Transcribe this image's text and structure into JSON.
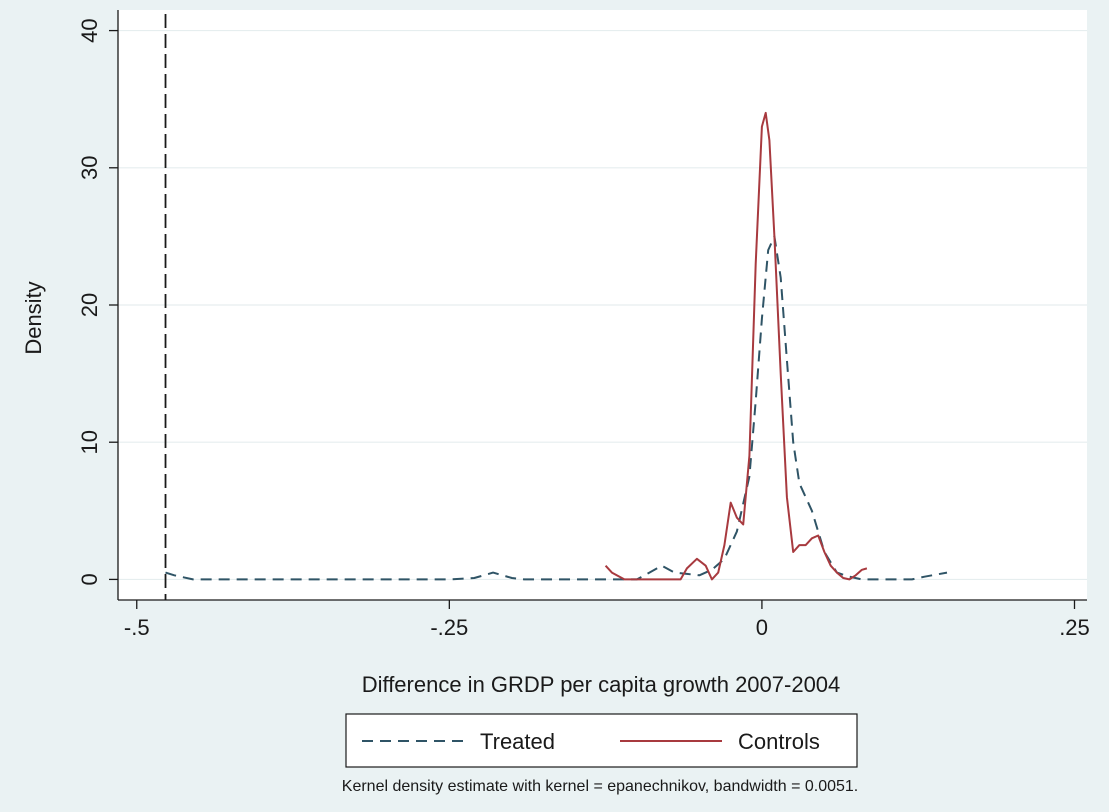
{
  "chart_data": {
    "type": "line",
    "title": "",
    "xlabel": "Difference in GRDP per capita growth 2007-2004",
    "ylabel": "Density",
    "xlim": [
      -0.515,
      0.26
    ],
    "ylim": [
      -1.5,
      41.5
    ],
    "x_ticks": [
      -0.5,
      -0.25,
      0,
      0.25
    ],
    "x_tick_labels": [
      "-.5",
      "-.25",
      "0",
      ".25"
    ],
    "y_ticks": [
      0,
      10,
      20,
      30,
      40
    ],
    "y_tick_labels": [
      "0",
      "10",
      "20",
      "30",
      "40"
    ],
    "grid": "horizontal",
    "legend_position": "bottom",
    "reference_line": {
      "x": -0.477,
      "style": "dashed"
    },
    "note": "Kernel density estimate with kernel = epanechnikov, bandwidth = 0.0051.",
    "series": [
      {
        "name": "Treated",
        "color": "#2f5466",
        "style": "dashed",
        "x": [
          -0.477,
          -0.47,
          -0.455,
          -0.44,
          -0.4,
          -0.3,
          -0.25,
          -0.23,
          -0.215,
          -0.2,
          -0.19,
          -0.15,
          -0.1,
          -0.09,
          -0.08,
          -0.07,
          -0.06,
          -0.05,
          -0.04,
          -0.03,
          -0.02,
          -0.01,
          -0.005,
          0,
          0.005,
          0.01,
          0.015,
          0.02,
          0.025,
          0.03,
          0.04,
          0.05,
          0.06,
          0.07,
          0.08,
          0.1,
          0.12,
          0.13,
          0.148
        ],
        "y": [
          0.5,
          0.3,
          0,
          0,
          0,
          0,
          0,
          0.1,
          0.5,
          0.1,
          0,
          0,
          0,
          0.5,
          1,
          0.5,
          0.4,
          0.3,
          0.7,
          1.5,
          3.5,
          7.5,
          13,
          19,
          24,
          25,
          22,
          16,
          10,
          7,
          5,
          2,
          0.5,
          0.2,
          0,
          0,
          0,
          0.2,
          0.5
        ]
      },
      {
        "name": "Controls",
        "color": "#a83a3f",
        "style": "solid",
        "x": [
          -0.125,
          -0.12,
          -0.11,
          -0.1,
          -0.08,
          -0.065,
          -0.06,
          -0.052,
          -0.045,
          -0.04,
          -0.035,
          -0.03,
          -0.025,
          -0.02,
          -0.015,
          -0.01,
          -0.005,
          0,
          0.003,
          0.006,
          0.01,
          0.015,
          0.02,
          0.025,
          0.03,
          0.035,
          0.04,
          0.045,
          0.05,
          0.055,
          0.06,
          0.065,
          0.07,
          0.075,
          0.08,
          0.084
        ],
        "y": [
          1,
          0.5,
          0,
          0,
          0,
          0,
          0.8,
          1.5,
          1,
          0,
          0.5,
          2.5,
          5.6,
          4.5,
          4,
          9,
          23,
          33,
          34,
          32,
          25,
          15,
          6,
          2,
          2.5,
          2.5,
          3,
          3.2,
          2,
          1,
          0.5,
          0.1,
          0,
          0.3,
          0.7,
          0.8
        ]
      }
    ]
  }
}
